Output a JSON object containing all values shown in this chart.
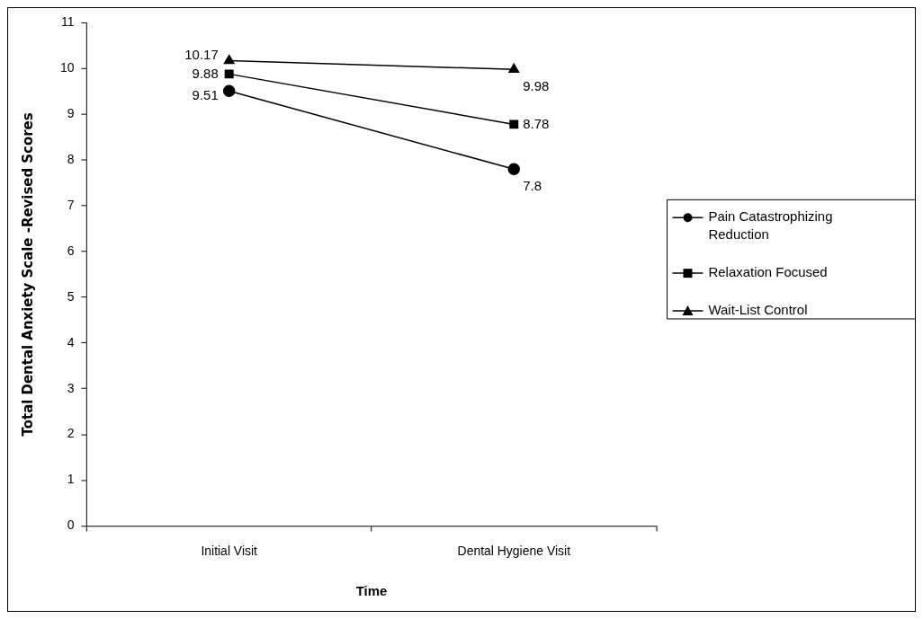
{
  "chart_data": {
    "type": "line",
    "xlabel": "Time",
    "ylabel": "Total Dental Anxiety Scale -Revised Scores",
    "categories": [
      "Initial Visit",
      "Dental Hygiene Visit"
    ],
    "series": [
      {
        "name": "Pain Catastrophizing Reduction",
        "color": "#000000",
        "values": [
          9.51,
          7.8
        ],
        "marker": "circle"
      },
      {
        "name": "Relaxation Focused",
        "color": "#000000",
        "values": [
          9.88,
          8.78
        ],
        "marker": "square"
      },
      {
        "name": "Wait-List Control",
        "color": "#000000",
        "values": [
          10.17,
          9.98
        ],
        "marker": "triangle"
      }
    ],
    "ylim": [
      0,
      11
    ],
    "yticks": [
      0,
      1,
      2,
      3,
      4,
      5,
      6,
      7,
      8,
      9,
      10,
      11
    ],
    "grid": false,
    "legend": "right",
    "data_labels": true
  }
}
